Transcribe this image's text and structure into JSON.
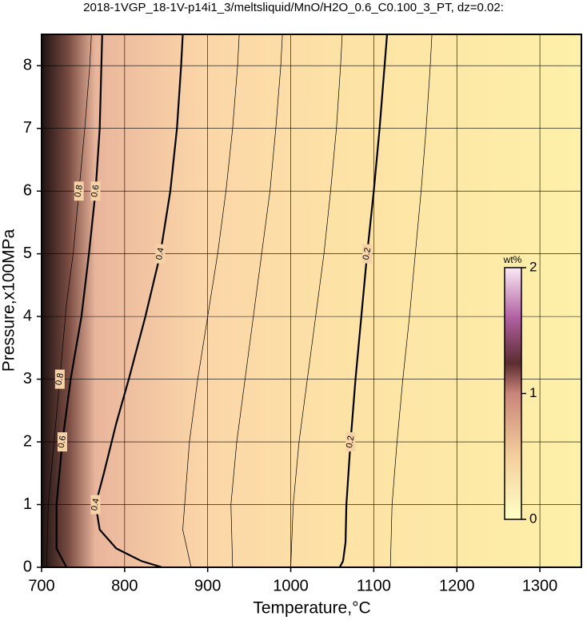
{
  "chart_data": {
    "type": "contour",
    "title": "2018-1VGP_18-1V-p14i1_3/meltsliquid/MnO/H2O_0.6_C0.100_3_PT, dz=0.02:",
    "xlabel": "Temperature,°C",
    "ylabel": "Pressure,x100MPa",
    "xlim": [
      700,
      1350
    ],
    "ylim": [
      0,
      8.5
    ],
    "xticks": [
      700,
      800,
      900,
      1000,
      1100,
      1200,
      1300
    ],
    "yticks": [
      0,
      1,
      2,
      3,
      4,
      5,
      6,
      7,
      8
    ],
    "grid": true,
    "colorbar": {
      "label": "wt%",
      "lim": [
        0,
        2
      ],
      "ticks": [
        0,
        1,
        2
      ]
    },
    "contours": [
      {
        "level": 0.2,
        "bold": true,
        "x": [
          1059,
          1063,
          1066,
          1067,
          1072,
          1078,
          1085,
          1092,
          1100,
          1107,
          1113,
          1116
        ],
        "y": [
          0,
          0.1,
          0.4,
          1,
          2,
          3,
          4,
          5,
          6,
          7,
          8,
          8.5
        ]
      },
      {
        "level": 0.4,
        "bold": true,
        "x": [
          845,
          820,
          790,
          770,
          765,
          775,
          790,
          805,
          825,
          843,
          855,
          863,
          868,
          870
        ],
        "y": [
          0,
          0.1,
          0.3,
          0.6,
          1,
          1.5,
          2.3,
          3,
          4,
          5,
          6,
          7,
          8,
          8.5
        ]
      },
      {
        "level": 0.6,
        "bold": true,
        "x": [
          730,
          718,
          718,
          725,
          735,
          748,
          757,
          765,
          770,
          772,
          773
        ],
        "y": [
          0,
          0.3,
          1,
          2,
          3,
          4,
          5,
          6,
          7,
          8,
          8.5
        ]
      },
      {
        "level": 0.8,
        "bold": false,
        "x": [
          706,
          708,
          715,
          722,
          730,
          738,
          745,
          752,
          758,
          760
        ],
        "y": [
          0,
          1,
          2,
          3,
          4.2,
          5,
          6,
          7,
          8,
          8.5
        ]
      },
      {
        "level": 0.3,
        "bold": false,
        "x": [
          930,
          928,
          935,
          945,
          955,
          965,
          975,
          982,
          988,
          990
        ],
        "y": [
          0,
          1,
          2,
          3,
          4,
          5,
          6,
          7,
          8,
          8.5
        ]
      },
      {
        "level": 0.25,
        "bold": false,
        "x": [
          1000,
          1003,
          1010,
          1020,
          1030,
          1040,
          1048,
          1055,
          1060,
          1062
        ],
        "y": [
          0,
          1,
          2,
          3,
          4,
          5,
          6,
          7,
          8,
          8.5
        ]
      },
      {
        "level": 0.35,
        "bold": false,
        "x": [
          880,
          870,
          878,
          888,
          900,
          912,
          922,
          930,
          936,
          938
        ],
        "y": [
          0,
          0.6,
          2,
          3,
          4,
          5,
          6,
          7,
          8,
          8.5
        ]
      },
      {
        "level": 0.15,
        "bold": false,
        "x": [
          1120,
          1122,
          1128,
          1135,
          1143,
          1150,
          1157,
          1163,
          1168,
          1170
        ],
        "y": [
          0,
          1,
          2,
          3,
          4,
          5,
          6,
          7,
          8,
          8.5
        ]
      }
    ]
  }
}
